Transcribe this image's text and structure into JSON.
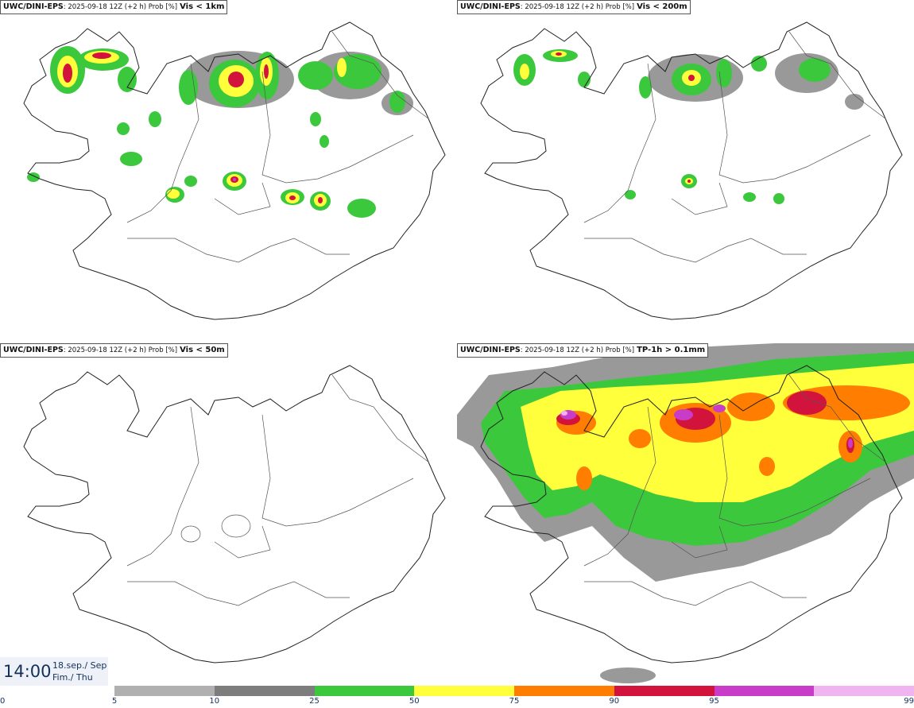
{
  "panels": [
    {
      "model": "UWC/DINI-EPS",
      "meta": ": 2025-09-18 12Z (+2 h) Prob [%]",
      "variable": "Vis < 1km"
    },
    {
      "model": "UWC/DINI-EPS",
      "meta": ": 2025-09-18 12Z (+2 h) Prob [%]",
      "variable": "Vis < 200m"
    },
    {
      "model": "UWC/DINI-EPS",
      "meta": ": 2025-09-18 12Z (+2 h) Prob [%]",
      "variable": "Vis < 50m"
    },
    {
      "model": "UWC/DINI-EPS",
      "meta": ": 2025-09-18 12Z (+2 h) Prob [%]",
      "variable": "TP-1h > 0.1mm"
    }
  ],
  "valid_time": {
    "time": "14:00",
    "date_line1": "18.sep./ Sep",
    "date_line2": "Fim./ Thu"
  },
  "legend": {
    "ticks": [
      "0",
      "5",
      "10",
      "25",
      "50",
      "75",
      "90",
      "95",
      "99"
    ],
    "colors": [
      "#b0b0b0",
      "#7d7d7d",
      "#3cc83c",
      "#ffff3c",
      "#ff7d00",
      "#d2143c",
      "#c83cc8",
      "#f0b4f0"
    ]
  },
  "map_colors": {
    "coast": "#222222",
    "border": "#555555",
    "gray": "#999999",
    "green": "#3cc83c",
    "yellow": "#ffff3c",
    "orange": "#ff7d00",
    "red": "#d2143c",
    "magenta": "#c83cc8",
    "pink": "#f0b4f0"
  }
}
